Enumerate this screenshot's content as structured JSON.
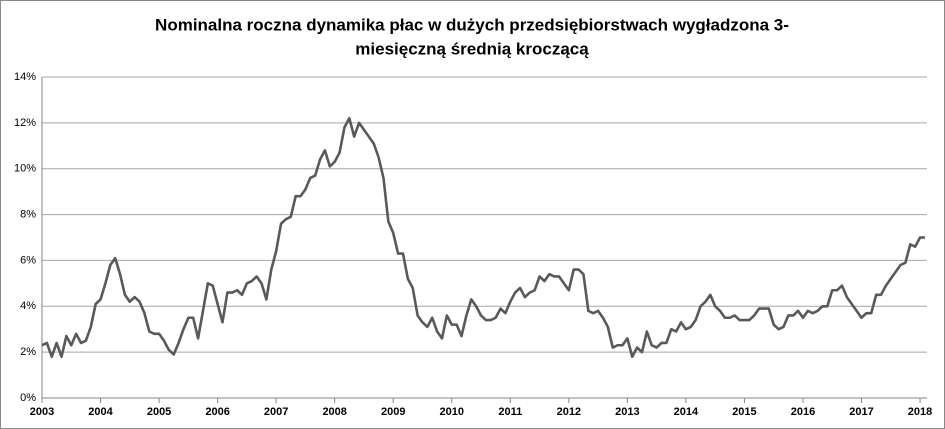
{
  "chart_data": {
    "type": "line",
    "title": [
      "Nominalna roczna dynamika płac w dużych przedsiębiorstwach wygładzona 3-",
      "miesięczną średnią kroczącą"
    ],
    "categories": [
      "2003",
      null,
      null,
      null,
      null,
      null,
      null,
      null,
      null,
      null,
      null,
      null,
      "2004",
      null,
      null,
      null,
      null,
      null,
      null,
      null,
      null,
      null,
      null,
      null,
      "2005",
      null,
      null,
      null,
      null,
      null,
      null,
      null,
      null,
      null,
      null,
      null,
      "2006",
      null,
      null,
      null,
      null,
      null,
      null,
      null,
      null,
      null,
      null,
      null,
      "2007",
      null,
      null,
      null,
      null,
      null,
      null,
      null,
      null,
      null,
      null,
      null,
      "2008",
      null,
      null,
      null,
      null,
      null,
      null,
      null,
      null,
      null,
      null,
      null,
      "2009",
      null,
      null,
      null,
      null,
      null,
      null,
      null,
      null,
      null,
      null,
      null,
      "2010",
      null,
      null,
      null,
      null,
      null,
      null,
      null,
      null,
      null,
      null,
      null,
      "2011",
      null,
      null,
      null,
      null,
      null,
      null,
      null,
      null,
      null,
      null,
      null,
      "2012",
      null,
      null,
      null,
      null,
      null,
      null,
      null,
      null,
      null,
      null,
      null,
      "2013",
      null,
      null,
      null,
      null,
      null,
      null,
      null,
      null,
      null,
      null,
      null,
      "2014",
      null,
      null,
      null,
      null,
      null,
      null,
      null,
      null,
      null,
      null,
      null,
      "2015",
      null,
      null,
      null,
      null,
      null,
      null,
      null,
      null,
      null,
      null,
      null,
      "2016",
      null,
      null,
      null,
      null,
      null,
      null,
      null,
      null,
      null,
      null,
      null,
      "2017",
      null,
      null,
      null,
      null,
      null,
      null,
      null,
      null,
      null,
      null,
      null,
      "2018",
      null
    ],
    "values": [
      2.3,
      2.4,
      1.8,
      2.4,
      1.8,
      2.7,
      2.3,
      2.8,
      2.4,
      2.5,
      3.1,
      4.1,
      4.3,
      5.0,
      5.8,
      6.1,
      5.4,
      4.5,
      4.2,
      4.4,
      4.2,
      3.7,
      2.9,
      2.8,
      2.8,
      2.5,
      2.1,
      1.9,
      2.4,
      3.0,
      3.5,
      3.5,
      2.6,
      3.8,
      5.0,
      4.9,
      4.1,
      3.3,
      4.6,
      4.6,
      4.7,
      4.5,
      5.0,
      5.1,
      5.3,
      5.0,
      4.3,
      5.6,
      6.4,
      7.6,
      7.8,
      7.9,
      8.8,
      8.8,
      9.1,
      9.6,
      9.7,
      10.4,
      10.8,
      10.1,
      10.3,
      10.7,
      11.8,
      12.2,
      11.4,
      12.0,
      11.7,
      11.4,
      11.1,
      10.5,
      9.6,
      7.7,
      7.2,
      6.3,
      6.3,
      5.2,
      4.8,
      3.6,
      3.3,
      3.1,
      3.5,
      2.9,
      2.6,
      3.6,
      3.2,
      3.2,
      2.7,
      3.6,
      4.3,
      4.0,
      3.6,
      3.4,
      3.4,
      3.5,
      3.9,
      3.7,
      4.2,
      4.6,
      4.8,
      4.4,
      4.6,
      4.7,
      5.3,
      5.1,
      5.4,
      5.3,
      5.3,
      5.0,
      4.7,
      5.6,
      5.6,
      5.4,
      3.8,
      3.7,
      3.8,
      3.5,
      3.1,
      2.2,
      2.3,
      2.3,
      2.6,
      1.8,
      2.2,
      2.0,
      2.9,
      2.3,
      2.2,
      2.4,
      2.4,
      3.0,
      2.9,
      3.3,
      3.0,
      3.1,
      3.4,
      4.0,
      4.2,
      4.5,
      4.0,
      3.8,
      3.5,
      3.5,
      3.6,
      3.4,
      3.4,
      3.4,
      3.6,
      3.9,
      3.9,
      3.9,
      3.2,
      3.0,
      3.1,
      3.6,
      3.6,
      3.8,
      3.5,
      3.8,
      3.7,
      3.8,
      4.0,
      4.0,
      4.7,
      4.7,
      4.9,
      4.4,
      4.1,
      3.8,
      3.5,
      3.7,
      3.7,
      4.5,
      4.5,
      4.9,
      5.2,
      5.5,
      5.8,
      5.9,
      6.7,
      6.6,
      7.0,
      7.0
    ],
    "color": "#595959",
    "ylim": [
      0,
      14
    ],
    "yticks": [
      {
        "value": 0,
        "label": "0%"
      },
      {
        "value": 2,
        "label": "2%"
      },
      {
        "value": 4,
        "label": "4%"
      },
      {
        "value": 6,
        "label": "6%"
      },
      {
        "value": 8,
        "label": "8%"
      },
      {
        "value": 10,
        "label": "10%"
      },
      {
        "value": 12,
        "label": "12%"
      },
      {
        "value": 14,
        "label": "14%"
      }
    ],
    "grid": true
  }
}
